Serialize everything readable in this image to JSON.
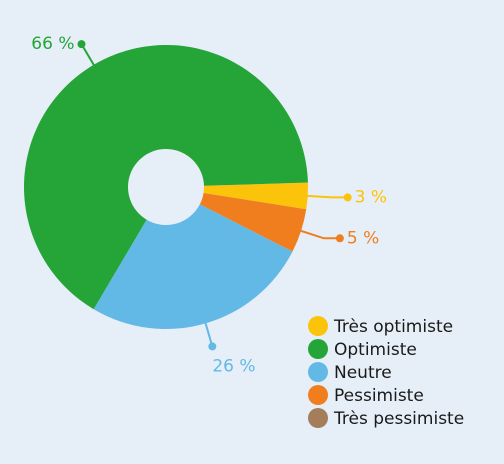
{
  "chart_data": {
    "type": "donut",
    "categories": [
      "Très optimiste",
      "Optimiste",
      "Neutre",
      "Pessimiste",
      "Très pessimiste"
    ],
    "values": [
      3,
      66,
      26,
      5,
      0
    ],
    "value_labels": [
      "3 %",
      "66 %",
      "26 %",
      "5 %",
      null
    ],
    "colors": [
      "#fcc30b",
      "#25a537",
      "#63b9e5",
      "#f07e1f",
      "#a47d5b"
    ],
    "legend": "bottom-right"
  }
}
